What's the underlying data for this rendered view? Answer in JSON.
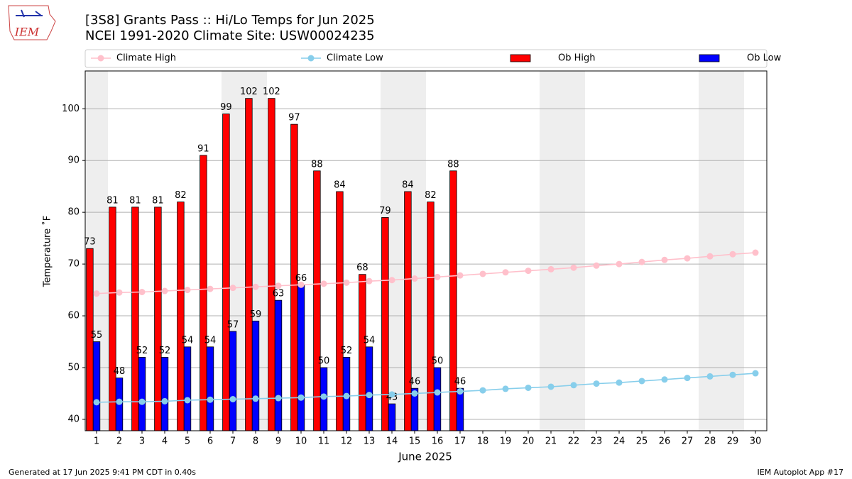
{
  "header": {
    "logo": "IEM"
  },
  "chart_data": {
    "type": "bar",
    "title": "[3S8] Grants Pass :: Hi/Lo Temps for Jun 2025",
    "subtitle": "NCEI 1991-2020 Climate Site: USW00024235",
    "x_label": "June 2025",
    "y_label": "Temperature ˚F",
    "x": [
      1,
      2,
      3,
      4,
      5,
      6,
      7,
      8,
      9,
      10,
      11,
      12,
      13,
      14,
      15,
      16,
      17,
      18,
      19,
      20,
      21,
      22,
      23,
      24,
      25,
      26,
      27,
      28,
      29,
      30
    ],
    "xlim": [
      0.5,
      30.5
    ],
    "xticks": [
      1,
      2,
      3,
      4,
      5,
      6,
      7,
      8,
      9,
      10,
      11,
      12,
      13,
      14,
      15,
      16,
      17,
      18,
      19,
      20,
      21,
      22,
      23,
      24,
      25,
      26,
      27,
      28,
      29,
      30
    ],
    "ylim": [
      37.8,
      107.3
    ],
    "yticks": [
      40,
      50,
      60,
      70,
      80,
      90,
      100
    ],
    "grid": true,
    "shaded_spans": [
      [
        0.5,
        1.5
      ],
      [
        6.5,
        8.5
      ],
      [
        13.5,
        15.5
      ],
      [
        20.5,
        22.5
      ],
      [
        27.5,
        29.5
      ]
    ],
    "shade_color": "#eeeeee",
    "series": [
      {
        "name": "Climate High",
        "kind": "line",
        "color": "#ffc0cb",
        "values": [
          64.3,
          64.5,
          64.6,
          64.8,
          65.0,
          65.2,
          65.4,
          65.6,
          65.8,
          66.0,
          66.2,
          66.4,
          66.7,
          66.9,
          67.2,
          67.5,
          67.8,
          68.1,
          68.4,
          68.7,
          69.0,
          69.3,
          69.7,
          70.0,
          70.4,
          70.8,
          71.1,
          71.5,
          71.9,
          72.2
        ]
      },
      {
        "name": "Climate Low",
        "kind": "line",
        "color": "#87ceeb",
        "values": [
          43.3,
          43.4,
          43.4,
          43.5,
          43.7,
          43.8,
          43.9,
          44.0,
          44.1,
          44.2,
          44.4,
          44.5,
          44.7,
          44.8,
          45.0,
          45.2,
          45.4,
          45.6,
          45.9,
          46.1,
          46.3,
          46.6,
          46.9,
          47.1,
          47.4,
          47.7,
          48.0,
          48.3,
          48.6,
          48.9
        ]
      },
      {
        "name": "Ob High",
        "kind": "bar",
        "color": "#ff0000",
        "values": [
          73,
          81,
          81,
          81,
          82,
          91,
          99,
          102,
          102,
          97,
          88,
          84,
          68,
          79,
          84,
          82,
          88,
          null,
          null,
          null,
          null,
          null,
          null,
          null,
          null,
          null,
          null,
          null,
          null,
          null
        ]
      },
      {
        "name": "Ob Low",
        "kind": "bar",
        "color": "#0000ff",
        "values": [
          55,
          48,
          52,
          52,
          54,
          54,
          57,
          59,
          63,
          66,
          50,
          52,
          54,
          43,
          46,
          50,
          46,
          null,
          null,
          null,
          null,
          null,
          null,
          null,
          null,
          null,
          null,
          null,
          null,
          null
        ]
      }
    ]
  },
  "footer": {
    "left": "Generated at 17 Jun 2025 9:41 PM CDT in 0.40s",
    "right": "IEM Autoplot App #17"
  }
}
